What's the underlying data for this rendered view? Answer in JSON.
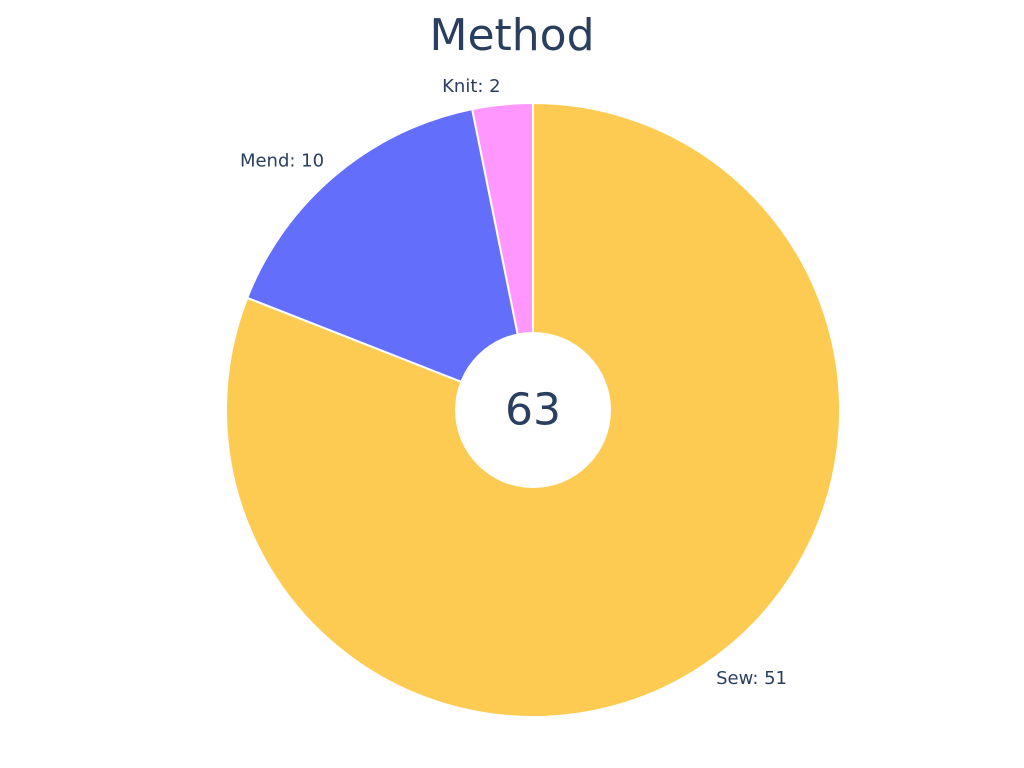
{
  "chart_data": {
    "type": "pie",
    "title": "Method",
    "hole": true,
    "center_text": "63",
    "slices": [
      {
        "label": "Sew",
        "value": 51,
        "text": "Sew: 51",
        "color": "#FECB52"
      },
      {
        "label": "Mend",
        "value": 10,
        "text": "Mend: 10",
        "color": "#636EFA"
      },
      {
        "label": "Knit",
        "value": 2,
        "text": "Knit: 2",
        "color": "#FF97FF"
      }
    ]
  }
}
